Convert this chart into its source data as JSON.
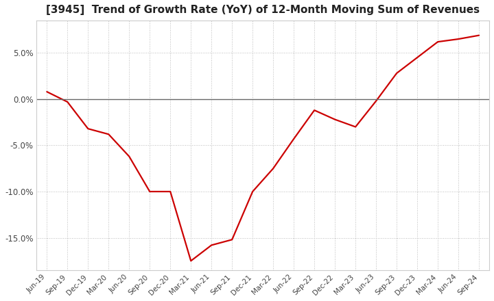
{
  "title": "[3945]  Trend of Growth Rate (YoY) of 12-Month Moving Sum of Revenues",
  "title_fontsize": 11,
  "line_color": "#cc0000",
  "background_color": "#ffffff",
  "grid_color": "#bbbbbb",
  "zero_line_color": "#666666",
  "x_labels": [
    "Jun-19",
    "Sep-19",
    "Dec-19",
    "Mar-20",
    "Jun-20",
    "Sep-20",
    "Dec-20",
    "Mar-21",
    "Jun-21",
    "Sep-21",
    "Dec-21",
    "Mar-22",
    "Jun-22",
    "Sep-22",
    "Dec-22",
    "Mar-23",
    "Jun-23",
    "Sep-23",
    "Dec-23",
    "Mar-24",
    "Jun-24",
    "Sep-24"
  ],
  "y_values": [
    0.8,
    -0.3,
    -3.2,
    -3.8,
    -6.2,
    -10.0,
    -10.0,
    -17.5,
    -15.8,
    -15.2,
    -10.0,
    -7.5,
    -4.3,
    -1.2,
    -2.2,
    -3.0,
    -0.2,
    2.8,
    4.5,
    6.2,
    6.5,
    6.9
  ],
  "ylim": [
    -18.5,
    8.5
  ],
  "yticks": [
    -15.0,
    -10.0,
    -5.0,
    0.0,
    5.0
  ],
  "line_width": 1.6
}
